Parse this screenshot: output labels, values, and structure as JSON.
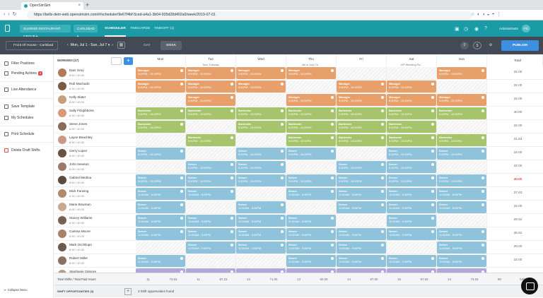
{
  "browser": {
    "tab_title": "OpenSimSim",
    "url": "https://bells-dem-web.opensimsim.com/#/scheduler/9e67f4bf-5ced-a4a1-3b04-935d28d402a0/week/2019-07-01"
  },
  "app": {
    "business": "SUNRISE RESTAURANT GROUP",
    "location_menu": "CARLSBAD",
    "nav": [
      "SCHEDULER",
      "TIMECARDS",
      "TIMEOFF (1)"
    ],
    "admin": "Administrator",
    "admin_initials": "FS"
  },
  "toolbar": {
    "location": "Front Of House - Carlsbad",
    "date_range": "Mon, Jul 1 - Sun, Jul 7",
    "views": [
      "DAY",
      "WEEK"
    ],
    "alerts": "0",
    "publish": "PUBLISH"
  },
  "sidebar": [
    {
      "label": "Filter Positions"
    },
    {
      "label": "Pending Actions",
      "badge": "5"
    },
    {
      "label": "Live Attendance"
    },
    {
      "label": "Save Template"
    },
    {
      "label": "My Schedules"
    },
    {
      "label": "Print Schedule"
    },
    {
      "label": "Delete Draft Shifts"
    }
  ],
  "collapse_label": "Collapse Menu",
  "grid": {
    "workers_header": "WORKERS (17)",
    "days": [
      {
        "label": "Mon",
        "sub": ""
      },
      {
        "label": "Tue",
        "sub": "Taco Tuesday"
      },
      {
        "label": "Wed",
        "sub": ""
      },
      {
        "label": "Thu",
        "sub": "4th of July Ce..."
      },
      {
        "label": "Fri",
        "sub": ""
      },
      {
        "label": "Sat",
        "sub": "VIP Wedding Pa..."
      },
      {
        "label": "Sun",
        "sub": ""
      }
    ],
    "total_header": "Total"
  },
  "workers": [
    {
      "name": "Dani Grey",
      "hours": "8.00 / 40.00",
      "total": "32.00",
      "color": "#b07a56",
      "shifts": [
        [
          "mgr",
          "Manager",
          "5:00PM - 10:00PM"
        ],
        [
          "mgr",
          "Manager",
          "5:00PM - 10:00PM"
        ],
        [
          "mgr",
          "Manager",
          "5:00PM - 10:00PM"
        ],
        [
          "mgr",
          "Manager",
          "5:00PM - 10:00PM"
        ],
        null,
        null,
        [
          "mgr",
          "Manager",
          "5:00PM - 10:00PM"
        ]
      ]
    },
    {
      "name": "Rob Machado",
      "hours": "8.00 / 40.00",
      "total": "32.00",
      "color": "#7a5a46",
      "shifts": [
        [
          "mgr",
          "Manager",
          "5:00PM - 10:00PM"
        ],
        [
          "mgr",
          "Manager",
          "5:00PM - 10:00PM"
        ],
        [
          "mgr",
          "Manager",
          "5:00PM - 10:00PM"
        ],
        null,
        [
          "mgr",
          "Manager",
          "5:00PM - 10:00PM"
        ],
        [
          "mgr",
          "Manager",
          "5:00PM - 10:00PM"
        ],
        null
      ]
    },
    {
      "name": "Kelly Slater",
      "hours": "8.00 / 40.00",
      "total": "32.00",
      "color": "#c4a07a",
      "shifts": [
        null,
        [
          "mgr",
          "Manager",
          "5:00PM - 10:00PM"
        ],
        null,
        [
          "mgr",
          "Manager",
          "5:00PM - 10:00PM"
        ],
        [
          "mgr",
          "Manager",
          "5:00PM - 10:00PM"
        ],
        [
          "mgr",
          "Manager",
          "5:00PM - 10:00PM"
        ],
        [
          "mgr",
          "Manager",
          "5:00PM - 10:00PM"
        ]
      ]
    },
    {
      "name": "Sally Fitzgibbons",
      "hours": "8.00 / 40.00",
      "total": "40.00",
      "color": "#d99a7a",
      "shifts": [
        [
          "bar",
          "Bartender",
          "5:00PM - 10:00PM"
        ],
        [
          "bar",
          "Bartender",
          "5:00PM - 10:00PM"
        ],
        [
          "bar",
          "Bartender",
          "5:00PM - 10:00PM"
        ],
        [
          "bar",
          "Bartender",
          "5:00PM - 10:00PM"
        ],
        [
          "bar",
          "Bartender",
          "5:00PM - 10:00PM"
        ],
        [
          "bar",
          "Bartender",
          "5:00PM - 10:00PM"
        ],
        [
          "bar",
          "Bartender",
          "5:00PM - 10:00PM"
        ]
      ]
    },
    {
      "name": "Steve Jones",
      "hours": "8.00 / 40.00",
      "total": "32.00",
      "color": "#8a6a5a",
      "shifts": [
        [
          "bar",
          "Bartender",
          "5:00PM - 10:00PM"
        ],
        null,
        [
          "bar",
          "Bartender",
          "5:00PM - 10:00PM"
        ],
        [
          "bar",
          "Bartender",
          "5:00PM - 10:00PM"
        ],
        [
          "bar",
          "Bartender",
          "5:00PM - 10:00PM"
        ],
        [
          "bar",
          "Bartender",
          "5:00PM - 10:00PM"
        ],
        null
      ]
    },
    {
      "name": "Layne Beachley",
      "hours": "8.00 / 40.00",
      "total": "31.63",
      "color": "#c89a8a",
      "shifts": [
        null,
        [
          "bar",
          "Bartender",
          "5:00PM - 10:00PM"
        ],
        null,
        [
          "bar",
          "Bartender",
          "5:00PM - 10:00PM"
        ],
        [
          "bar",
          "Bartender",
          "5:00PM - 10:00PM"
        ],
        [
          "bar",
          "Bartender",
          "5:00PM - 10:00PM"
        ],
        [
          "bar",
          "Bartender",
          "5:00PM - 10:00PM"
        ]
      ]
    },
    {
      "name": "Gerry Lopez",
      "hours": "8.00 / 40.00",
      "total": "32.00",
      "color": "#6a5040",
      "shifts": [
        [
          "srv",
          "Server",
          "5:00PM - 10:00PM"
        ],
        null,
        [
          "srv",
          "Server",
          "5:00PM - 10:00PM"
        ],
        [
          "srv",
          "Server",
          "5:00PM - 10:00PM"
        ],
        null,
        [
          "srv",
          "Server",
          "5:00PM - 10:00PM"
        ],
        [
          "srv",
          "Server",
          "5:00PM - 10:00PM"
        ]
      ]
    },
    {
      "name": "John Newson",
      "hours": "8.00 / 40.00",
      "total": "32.00",
      "color": "#9a7a6a",
      "shifts": [
        null,
        [
          "srv",
          "Server",
          "5:00PM - 10:00PM"
        ],
        [
          "srv",
          "Server",
          "5:00PM - 10:00PM"
        ],
        null,
        [
          "srv",
          "Server",
          "5:00PM - 10:00PM"
        ],
        [
          "srv",
          "Server",
          "5:00PM - 10:00PM"
        ],
        null
      ]
    },
    {
      "name": "Gabriel Medina",
      "hours": "8.00 / 40.00",
      "total": "40.00",
      "red": true,
      "color": "#5a4a40",
      "shifts": [
        [
          "srv",
          "Server",
          "5:00PM - 10:00PM"
        ],
        [
          "srv",
          "Server",
          "5:00PM - 10:00PM"
        ],
        [
          "srv",
          "Server",
          "5:00PM - 10:00PM"
        ],
        [
          "srv",
          "Server",
          "5:00PM - 10:00PM"
        ],
        [
          "srv",
          "Server",
          "5:00PM - 10:00PM"
        ],
        [
          "srv",
          "Server",
          "5:00PM - 10:00PM"
        ],
        [
          "srv",
          "Server",
          "5:00PM - 10:00PM"
        ]
      ]
    },
    {
      "name": "Mick Fanning",
      "hours": "8.00 / 40.00",
      "total": "37.63",
      "color": "#b08a6a",
      "shifts": [
        [
          "srv",
          "Server",
          "11:00AM - 5:00PM"
        ],
        [
          "srv",
          "Server",
          "11:00AM - 5:00PM"
        ],
        null,
        [
          "srv",
          "Server",
          "11:00AM - 5:00PM"
        ],
        [
          "srv",
          "Server",
          "11:00AM - 5:00PM"
        ],
        [
          "srv",
          "Server",
          "11:00AM - 5:00PM"
        ],
        [
          "srv",
          "Server",
          "11:00AM - 5:00PM"
        ]
      ]
    },
    {
      "name": "Marie Bowman",
      "hours": "8.00 / 40.00",
      "total": "32.00",
      "color": "#c8a890",
      "shifts": [
        [
          "srv",
          "Server",
          "11:00AM - 5:00PM"
        ],
        null,
        [
          "srv",
          "Server",
          "11:00AM - 5:00PM"
        ],
        null,
        [
          "srv",
          "Server",
          "11:00AM - 5:00PM"
        ],
        [
          "srv",
          "Server",
          "11:00AM - 5:00PM"
        ],
        [
          "srv",
          "Server",
          "11:00AM - 5:00PM"
        ]
      ]
    },
    {
      "name": "Stacey Williams",
      "hours": "8.00 / 40.00",
      "total": "28.52",
      "color": "#7a6050",
      "shifts": [
        [
          "srv",
          "Server",
          "11:00AM - 5:00PM"
        ],
        [
          "srv",
          "Server",
          "11:00AM - 5:00PM"
        ],
        [
          "srv",
          "Server",
          "11:00AM - 5:00PM"
        ],
        [
          "srv",
          "Server",
          "11:00AM - 5:00PM"
        ],
        null,
        [
          "srv",
          "Server",
          "11:00AM - 5:00PM"
        ],
        null
      ]
    },
    {
      "name": "Carissa Moore",
      "hours": "8.00 / 40.00",
      "total": "36.52",
      "color": "#a88068",
      "shifts": [
        [
          "srv",
          "Server",
          "11:00AM - 5:00PM"
        ],
        [
          "srv",
          "Server",
          "11:00AM - 5:00PM"
        ],
        [
          "srv",
          "Server",
          "11:00AM - 5:00PM"
        ],
        [
          "srv",
          "Server",
          "11:00AM - 5:00PM"
        ],
        [
          "srv",
          "Server",
          "11:00AM - 5:00PM"
        ],
        [
          "srv",
          "Server",
          "11:00AM - 5:00PM"
        ],
        [
          "srv",
          "Server",
          "11:00AM - 5:00PM"
        ]
      ]
    },
    {
      "name": "Mark Occhilupo",
      "hours": "8.00 / 40.00",
      "total": "28.00",
      "color": "#6a5a50",
      "shifts": [
        null,
        [
          "srv",
          "Server",
          "11:00AM - 5:00PM"
        ],
        [
          "srv",
          "Server",
          "11:00AM - 5:00PM"
        ],
        [
          "srv",
          "Server",
          "11:00AM - 5:00PM"
        ],
        [
          "srv",
          "Server",
          "11:00AM - 5:00PM"
        ],
        null,
        [
          "srv",
          "Server",
          "11:00AM - 5:00PM"
        ]
      ]
    },
    {
      "name": "Robert Miller",
      "hours": "8.00 / 40.00",
      "total": "32.00",
      "color": "#8a7060",
      "shifts": [
        [
          "srv",
          "Server",
          "11:00AM - 5:00PM"
        ],
        null,
        null,
        [
          "srv",
          "Server",
          "11:00AM - 5:00PM"
        ],
        [
          "srv",
          "Server",
          "11:00AM - 5:00PM"
        ],
        [
          "srv",
          "Server",
          "11:00AM - 5:00PM"
        ],
        [
          "srv",
          "Server",
          "11:00AM - 5:00PM"
        ]
      ]
    },
    {
      "name": "Stephanie Gilmore",
      "hours": "8.00 / 40.00",
      "total": "",
      "color": "#b89a80",
      "shifts": [
        [
          "srv2",
          "",
          ""
        ],
        [
          "srv2",
          "",
          ""
        ],
        [
          "srv2",
          "",
          ""
        ],
        [
          "srv2",
          "",
          ""
        ],
        [
          "srv2",
          "",
          ""
        ],
        [
          "srv2",
          "",
          ""
        ],
        [
          "srv2",
          "",
          ""
        ]
      ]
    }
  ],
  "footer": {
    "label": "Total Shifts / Total Paid Hours",
    "values": [
      "11",
      "73.63",
      "11",
      "87.23",
      "12",
      "71.00",
      "13",
      "60.00",
      "14",
      "87.00",
      "15",
      "97.63",
      "14",
      "73.23",
      "90",
      "549.74"
    ]
  },
  "opportunities": {
    "label": "SHIFT OPPORTUNITIES (3)",
    "text": "3 Shift opportunities found"
  }
}
